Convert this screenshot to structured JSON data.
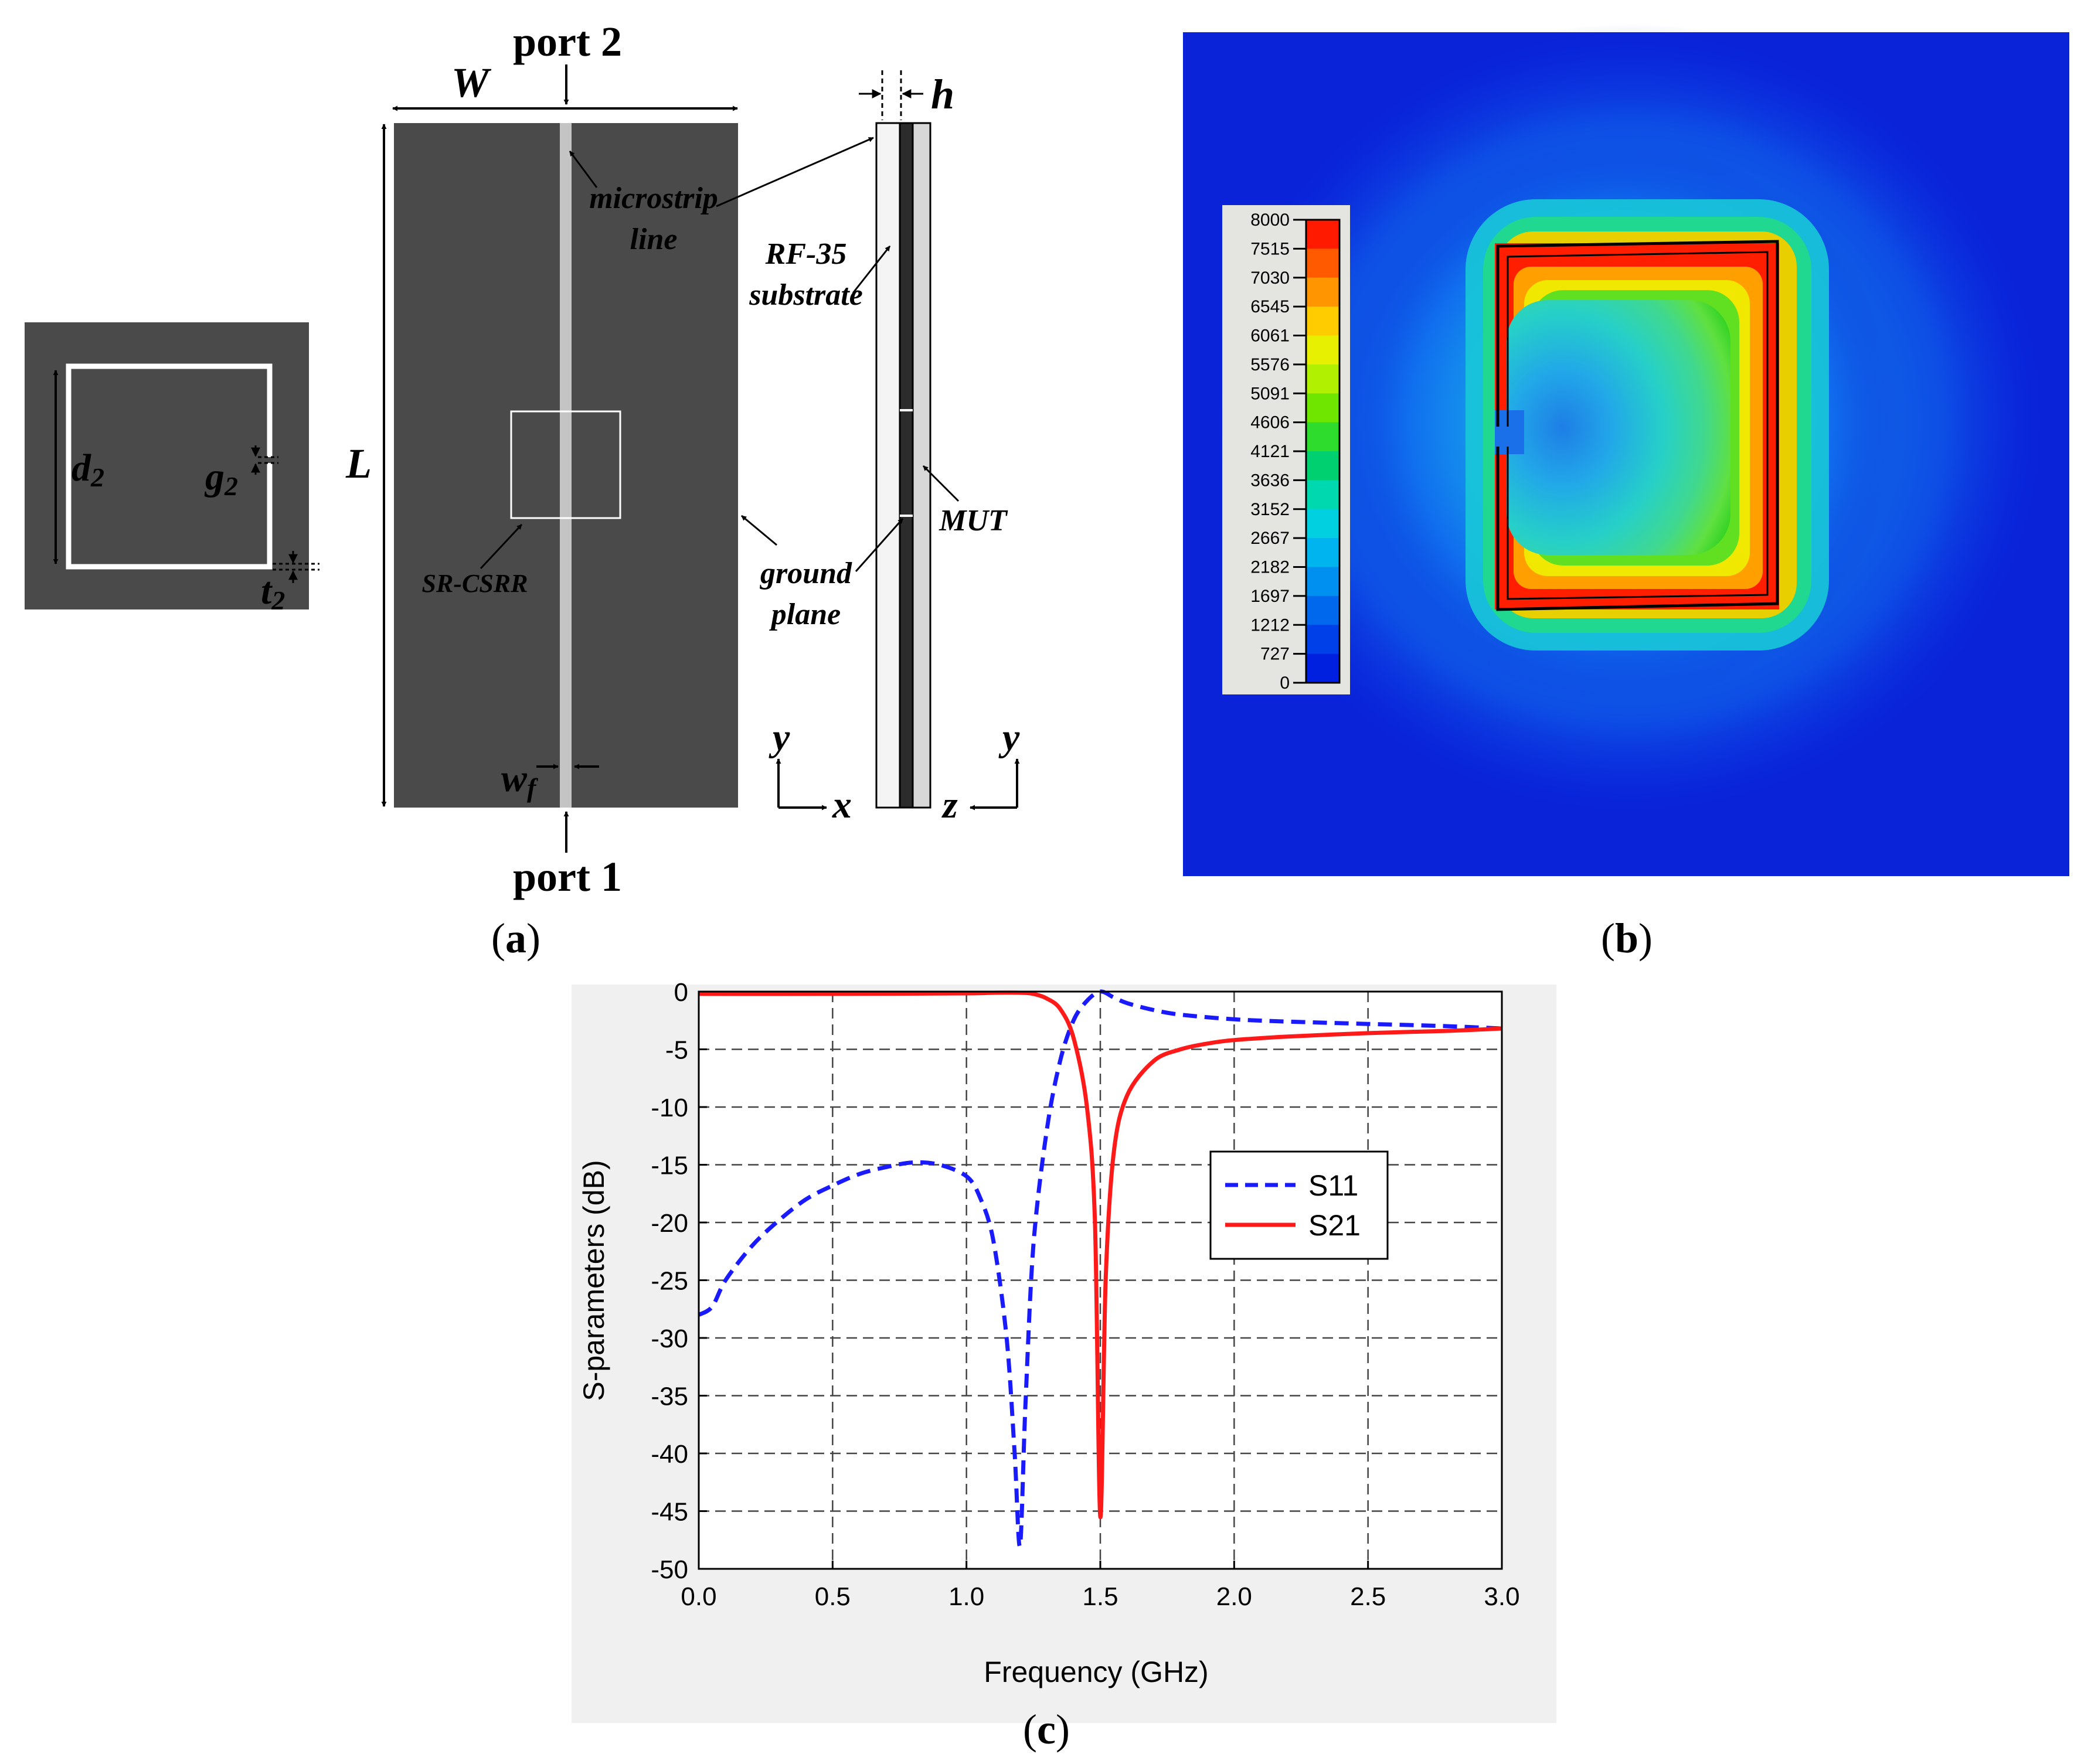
{
  "panel_a": {
    "unit_cell_labels": {
      "d2_main": "d",
      "d2_sub": "2",
      "g2_main": "g",
      "g2_sub": "2",
      "t2_main": "t",
      "t2_sub": "2"
    },
    "labels": {
      "port2": "port 2",
      "port1": "port 1",
      "W": "W",
      "L": "L",
      "h": "h",
      "wf_main": "w",
      "wf_sub": "f",
      "microstrip1": "microstrip",
      "microstrip2": "line",
      "rf35_1": "RF-35",
      "rf35_2": "substrate",
      "srcsrr": "SR-CSRR",
      "ground1": "ground",
      "ground2": "plane",
      "mut": "MUT",
      "axis1_y": "y",
      "axis1_x": "x",
      "axis2_y": "y",
      "axis2_z": "z"
    },
    "caption": {
      "open": "(",
      "letter": "a",
      "close": ")"
    }
  },
  "panel_b": {
    "colorbar_ticks": [
      "8000",
      "7515",
      "7030",
      "6545",
      "6061",
      "5576",
      "5091",
      "4606",
      "4121",
      "3636",
      "3152",
      "2667",
      "2182",
      "1697",
      "1212",
      "727",
      "0"
    ],
    "colorbar_colors": [
      "#ff1a00",
      "#ff5a00",
      "#ff9500",
      "#ffcc00",
      "#e6f000",
      "#b0f000",
      "#6ee600",
      "#2edc2e",
      "#00d070",
      "#00d8b0",
      "#00d0e0",
      "#00b4f0",
      "#0090f0",
      "#0068ec",
      "#0040e8",
      "#0020e0"
    ],
    "caption": {
      "open": "(",
      "letter": "b",
      "close": ")"
    }
  },
  "panel_c": {
    "caption": {
      "open": "(",
      "letter": "c",
      "close": ")"
    }
  },
  "chart_data": {
    "type": "line",
    "xlabel": "Frequency (GHz)",
    "ylabel": "S-parameters (dB)",
    "xlim": [
      0,
      3.0
    ],
    "ylim": [
      -50,
      0
    ],
    "xticks": [
      "0.0",
      "0.5",
      "1.0",
      "1.5",
      "2.0",
      "2.5",
      "3.0"
    ],
    "yticks": [
      "0",
      "-5",
      "-10",
      "-15",
      "-20",
      "-25",
      "-30",
      "-35",
      "-40",
      "-45",
      "-50"
    ],
    "grid": true,
    "legend_position": "right",
    "series": [
      {
        "name": "S11",
        "color": "#1a1aff",
        "dash": true,
        "x": [
          0.0,
          0.05,
          0.1,
          0.2,
          0.3,
          0.4,
          0.5,
          0.6,
          0.7,
          0.8,
          0.9,
          1.0,
          1.05,
          1.1,
          1.15,
          1.18,
          1.2,
          1.22,
          1.25,
          1.3,
          1.35,
          1.4,
          1.45,
          1.5,
          1.55,
          1.6,
          1.7,
          1.8,
          2.0,
          2.2,
          2.5,
          2.8,
          3.0
        ],
        "y": [
          -28,
          -27.3,
          -25,
          -22,
          -19.8,
          -18,
          -16.8,
          -15.8,
          -15.2,
          -14.8,
          -15.0,
          -16.0,
          -17.8,
          -21.5,
          -30,
          -40,
          -48,
          -36,
          -22,
          -12,
          -6,
          -2.5,
          -0.8,
          0,
          -0.5,
          -1.0,
          -1.6,
          -2.0,
          -2.4,
          -2.6,
          -2.8,
          -3.0,
          -3.2
        ]
      },
      {
        "name": "S21",
        "color": "#ff1a1a",
        "dash": false,
        "x": [
          0.0,
          0.5,
          1.0,
          1.1,
          1.2,
          1.25,
          1.3,
          1.35,
          1.4,
          1.45,
          1.48,
          1.5,
          1.52,
          1.55,
          1.6,
          1.7,
          1.8,
          1.9,
          2.0,
          2.2,
          2.5,
          2.8,
          3.0
        ],
        "y": [
          -0.2,
          -0.2,
          -0.15,
          -0.1,
          -0.1,
          -0.2,
          -0.6,
          -1.5,
          -4.0,
          -10.0,
          -20.0,
          -45.5,
          -25.0,
          -14.0,
          -9.0,
          -6.0,
          -5.0,
          -4.5,
          -4.2,
          -3.9,
          -3.6,
          -3.4,
          -3.2
        ]
      }
    ]
  }
}
